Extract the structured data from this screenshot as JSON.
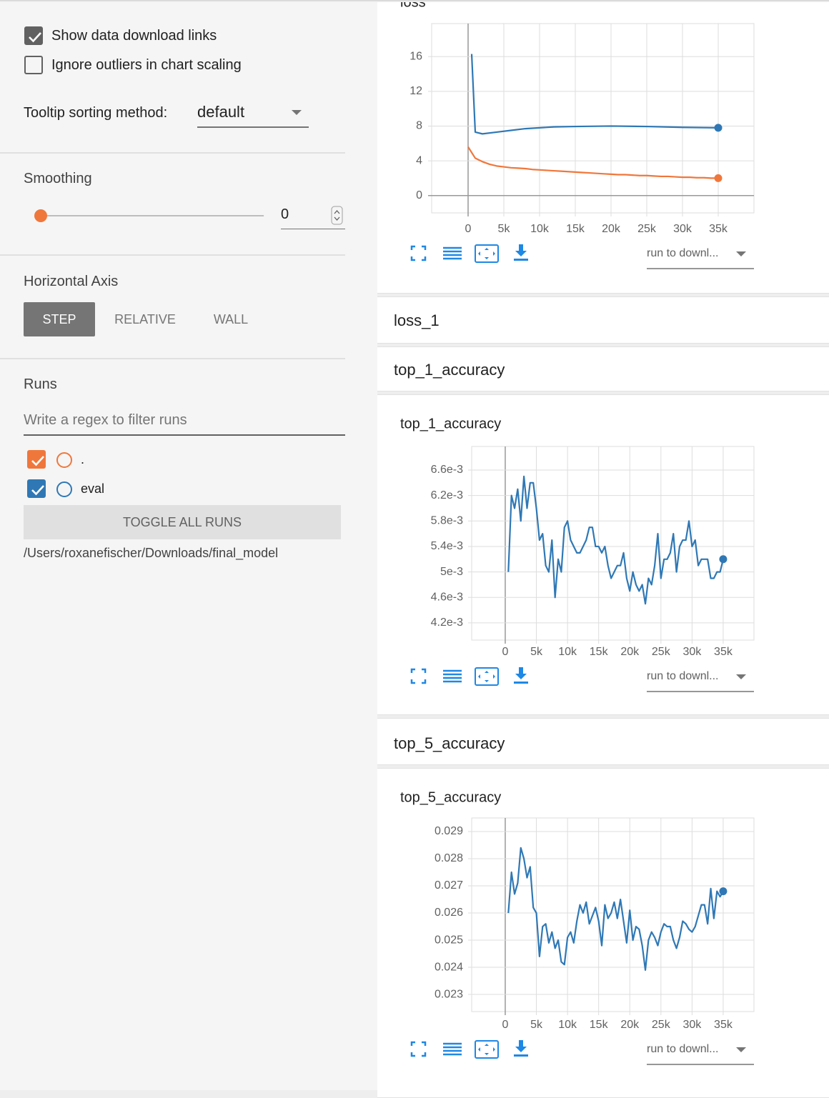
{
  "sidebar": {
    "options": [
      {
        "label": "Show data download links",
        "checked": true
      },
      {
        "label": "Ignore outliers in chart scaling",
        "checked": false
      }
    ],
    "tooltip_sorting": {
      "label": "Tooltip sorting method:",
      "value": "default"
    },
    "smoothing": {
      "label": "Smoothing",
      "value": 0
    },
    "horizontal_axis": {
      "label": "Horizontal Axis",
      "options": [
        "STEP",
        "RELATIVE",
        "WALL"
      ],
      "selected": 0
    },
    "runs": {
      "label": "Runs",
      "filter_placeholder": "Write a regex to filter runs",
      "checked": [
        true,
        true
      ],
      "toggle_label": "TOGGLE ALL RUNS",
      "logdir": "/Users/roxanefischer/Downloads/final_model"
    }
  },
  "sections": [
    "loss_1",
    "top_1_accuracy",
    "top_5_accuracy"
  ],
  "chart_data": [
    {
      "type": "line",
      "title": "loss",
      "download_label": "run to downl...",
      "xlim": [
        -5100,
        40000
      ],
      "ylim": [
        -2,
        19.8
      ],
      "grid": true,
      "xticks": [
        0,
        {
          "value": 5000,
          "label": "5k"
        },
        {
          "value": 10000,
          "label": "10k"
        },
        {
          "value": 15000,
          "label": "15k"
        },
        {
          "value": 20000,
          "label": "20k"
        },
        {
          "value": 25000,
          "label": "25k"
        },
        {
          "value": 30000,
          "label": "30k"
        },
        {
          "value": 35000,
          "label": "35k"
        }
      ],
      "yticks": [
        0,
        4,
        8,
        12,
        16
      ],
      "series": [
        {
          "name": ".",
          "color": "#f0773b",
          "x": [
            0,
            1000,
            2000,
            3000,
            4000,
            5000,
            6000,
            7000,
            8000,
            9000,
            10000,
            11000,
            12000,
            13000,
            14000,
            15000,
            16000,
            17000,
            18000,
            19000,
            20000,
            21000,
            22000,
            23000,
            24000,
            25000,
            26000,
            27000,
            28000,
            29000,
            30000,
            31000,
            32000,
            33000,
            34000,
            35000
          ],
          "values": [
            5.6,
            4.3,
            3.9,
            3.6,
            3.4,
            3.3,
            3.2,
            3.15,
            3.1,
            3.0,
            2.95,
            2.9,
            2.85,
            2.8,
            2.75,
            2.7,
            2.65,
            2.6,
            2.55,
            2.5,
            2.45,
            2.4,
            2.4,
            2.35,
            2.3,
            2.3,
            2.25,
            2.2,
            2.2,
            2.15,
            2.1,
            2.1,
            2.05,
            2.05,
            2.0,
            2.0
          ]
        },
        {
          "name": "eval",
          "color": "#2f78b5",
          "x": [
            500,
            1000,
            2000,
            4000,
            6000,
            8000,
            10000,
            12000,
            15000,
            20000,
            25000,
            30000,
            35000
          ],
          "values": [
            16.3,
            7.3,
            7.1,
            7.3,
            7.5,
            7.7,
            7.8,
            7.9,
            7.95,
            8.0,
            7.95,
            7.85,
            7.8
          ]
        }
      ]
    },
    {
      "type": "line",
      "title": "top_1_accuracy",
      "download_label": "run to downl...",
      "xlim": [
        -5390,
        39940
      ],
      "ylim": [
        0.00393,
        0.00697
      ],
      "grid": true,
      "xticks": [
        0,
        {
          "value": 5000,
          "label": "5k"
        },
        {
          "value": 10000,
          "label": "10k"
        },
        {
          "value": 15000,
          "label": "15k"
        },
        {
          "value": 20000,
          "label": "20k"
        },
        {
          "value": 25000,
          "label": "25k"
        },
        {
          "value": 30000,
          "label": "30k"
        },
        {
          "value": 35000,
          "label": "35k"
        }
      ],
      "yticks": [
        {
          "value": 0.0042,
          "label": "4.2e-3"
        },
        {
          "value": 0.0046,
          "label": "4.6e-3"
        },
        {
          "value": 0.005,
          "label": "5e-3"
        },
        {
          "value": 0.0054,
          "label": "5.4e-3"
        },
        {
          "value": 0.0058,
          "label": "5.8e-3"
        },
        {
          "value": 0.0062,
          "label": "6.2e-3"
        },
        {
          "value": 0.0066,
          "label": "6.6e-3"
        }
      ],
      "series": [
        {
          "color": "#2f78b5",
          "x": [
            500,
            1000,
            1500,
            2000,
            2500,
            3000,
            3500,
            4000,
            4500,
            5000,
            5500,
            6000,
            6500,
            7000,
            7500,
            8000,
            8500,
            9000,
            9500,
            10000,
            10500,
            11000,
            11500,
            12000,
            12500,
            13000,
            13500,
            14000,
            14500,
            15000,
            15500,
            16000,
            16500,
            17000,
            17500,
            18000,
            18500,
            19000,
            19500,
            20000,
            20500,
            21000,
            21500,
            22000,
            22500,
            23000,
            23500,
            24000,
            24500,
            25000,
            25500,
            26000,
            26500,
            27000,
            27500,
            28000,
            28500,
            29000,
            29500,
            30000,
            30500,
            31000,
            31500,
            32000,
            32500,
            33000,
            33500,
            34000,
            34500,
            35000
          ],
          "values": [
            0.005,
            0.0062,
            0.006,
            0.0063,
            0.0058,
            0.0065,
            0.006,
            0.0064,
            0.0064,
            0.006,
            0.0055,
            0.0056,
            0.0051,
            0.005,
            0.0055,
            0.0046,
            0.0052,
            0.005,
            0.0057,
            0.0058,
            0.0055,
            0.0054,
            0.0053,
            0.0053,
            0.0054,
            0.0055,
            0.0057,
            0.0057,
            0.0054,
            0.0054,
            0.0053,
            0.0054,
            0.0051,
            0.0049,
            0.005,
            0.0051,
            0.0051,
            0.0053,
            0.0049,
            0.0047,
            0.005,
            0.0048,
            0.0047,
            0.0048,
            0.0045,
            0.0049,
            0.0048,
            0.0051,
            0.0056,
            0.0049,
            0.0052,
            0.0052,
            0.0053,
            0.0056,
            0.005,
            0.0054,
            0.0055,
            0.0055,
            0.0058,
            0.0054,
            0.0055,
            0.0051,
            0.0052,
            0.0052,
            0.0052,
            0.0049,
            0.0049,
            0.005,
            0.005,
            0.0052
          ]
        }
      ]
    },
    {
      "type": "line",
      "title": "top_5_accuracy",
      "download_label": "run to downl...",
      "xlim": [
        -5390,
        39940
      ],
      "ylim": [
        0.02237,
        0.0295
      ],
      "grid": true,
      "xticks": [
        0,
        {
          "value": 5000,
          "label": "5k"
        },
        {
          "value": 10000,
          "label": "10k"
        },
        {
          "value": 15000,
          "label": "15k"
        },
        {
          "value": 20000,
          "label": "20k"
        },
        {
          "value": 25000,
          "label": "25k"
        },
        {
          "value": 30000,
          "label": "30k"
        },
        {
          "value": 35000,
          "label": "35k"
        }
      ],
      "yticks": [
        0.023,
        0.024,
        0.025,
        0.026,
        0.027,
        0.028,
        0.029
      ],
      "series": [
        {
          "color": "#2f78b5",
          "x": [
            500,
            1000,
            1500,
            2000,
            2500,
            3000,
            3500,
            4000,
            4500,
            5000,
            5500,
            6000,
            6500,
            7000,
            7500,
            8000,
            8500,
            9000,
            9500,
            10000,
            10500,
            11000,
            11500,
            12000,
            12500,
            13000,
            13500,
            14000,
            14500,
            15000,
            15500,
            16000,
            16500,
            17000,
            17500,
            18000,
            18500,
            19000,
            19500,
            20000,
            20500,
            21000,
            21500,
            22000,
            22500,
            23000,
            23500,
            24000,
            24500,
            25000,
            25500,
            26000,
            26500,
            27000,
            27500,
            28000,
            28500,
            29000,
            29500,
            30000,
            30500,
            31000,
            31500,
            32000,
            32500,
            33000,
            33500,
            34000,
            34500,
            35000
          ],
          "values": [
            0.026,
            0.0275,
            0.0267,
            0.0271,
            0.0284,
            0.028,
            0.0273,
            0.0277,
            0.0262,
            0.026,
            0.0244,
            0.0255,
            0.0256,
            0.0249,
            0.0253,
            0.0247,
            0.025,
            0.0242,
            0.0241,
            0.0251,
            0.0253,
            0.0249,
            0.0257,
            0.0263,
            0.026,
            0.0264,
            0.0256,
            0.0259,
            0.0262,
            0.0257,
            0.0248,
            0.0263,
            0.0258,
            0.026,
            0.0264,
            0.0258,
            0.0265,
            0.0257,
            0.0249,
            0.0261,
            0.025,
            0.0255,
            0.0254,
            0.0248,
            0.0239,
            0.025,
            0.0253,
            0.0251,
            0.0248,
            0.0253,
            0.0256,
            0.0255,
            0.0255,
            0.025,
            0.0247,
            0.0251,
            0.0257,
            0.0256,
            0.0254,
            0.0253,
            0.0255,
            0.0259,
            0.0263,
            0.0263,
            0.0256,
            0.0269,
            0.0258,
            0.0268,
            0.0266,
            0.0268
          ]
        }
      ]
    }
  ]
}
